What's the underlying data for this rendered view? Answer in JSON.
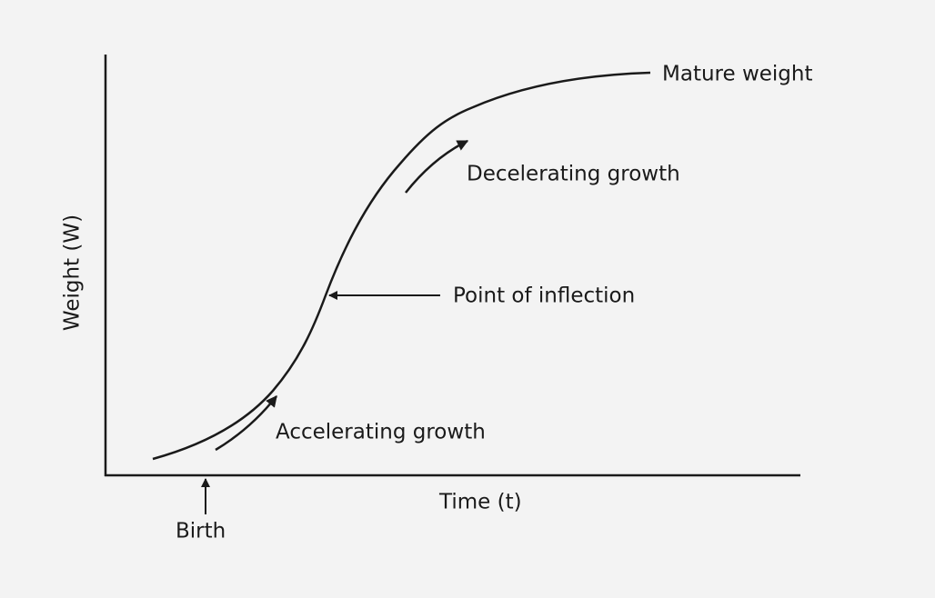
{
  "diagram": {
    "y_axis_label": "Weight (W)",
    "x_axis_label": "Time (t)",
    "annotations": {
      "mature": "Mature weight",
      "decelerating": "Decelerating growth",
      "inflection": "Point of inflection",
      "accelerating": "Accelerating growth",
      "birth": "Birth"
    }
  }
}
